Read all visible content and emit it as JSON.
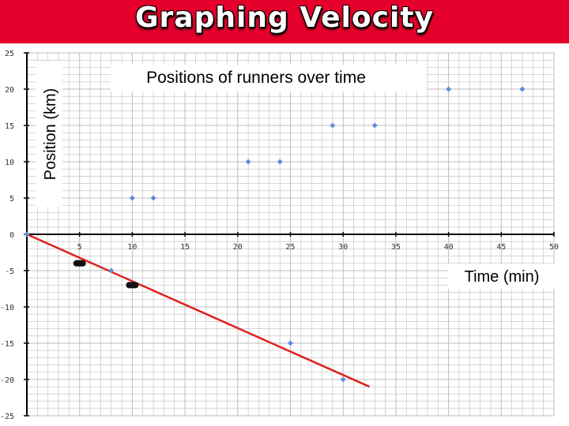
{
  "slide": {
    "title": "Graphing Velocity"
  },
  "colors": {
    "title_bar": "#e4002b",
    "points": "#5b8fd6",
    "trend_line": "#e0201b",
    "grid": "#bdbdbd",
    "axis": "#000000"
  },
  "chart_data": {
    "type": "scatter",
    "title": "Positions of runners over time",
    "xlabel": "Time (min)",
    "ylabel": "Position (km)",
    "xlim": [
      0,
      50
    ],
    "ylim": [
      -25,
      25
    ],
    "x_ticks": [
      5,
      10,
      15,
      20,
      25,
      30,
      35,
      40,
      45,
      50
    ],
    "y_ticks": [
      25,
      20,
      15,
      10,
      5,
      0,
      -5,
      -10,
      -15,
      -20,
      -25
    ],
    "grid": true,
    "series": [
      {
        "points": [
          [
            0,
            0
          ],
          [
            10,
            5
          ],
          [
            12,
            5
          ],
          [
            21,
            10
          ],
          [
            24,
            10
          ],
          [
            29,
            15
          ],
          [
            33,
            15
          ],
          [
            40,
            20
          ],
          [
            47,
            20
          ]
        ]
      },
      {
        "points": [
          [
            8,
            -5
          ],
          [
            25,
            -15
          ],
          [
            30,
            -20
          ]
        ]
      }
    ],
    "trend_line": {
      "from": [
        0,
        0
      ],
      "to": [
        32.5,
        -21
      ]
    },
    "highlight_points": [
      [
        5,
        -4
      ],
      [
        10,
        -7
      ]
    ]
  }
}
